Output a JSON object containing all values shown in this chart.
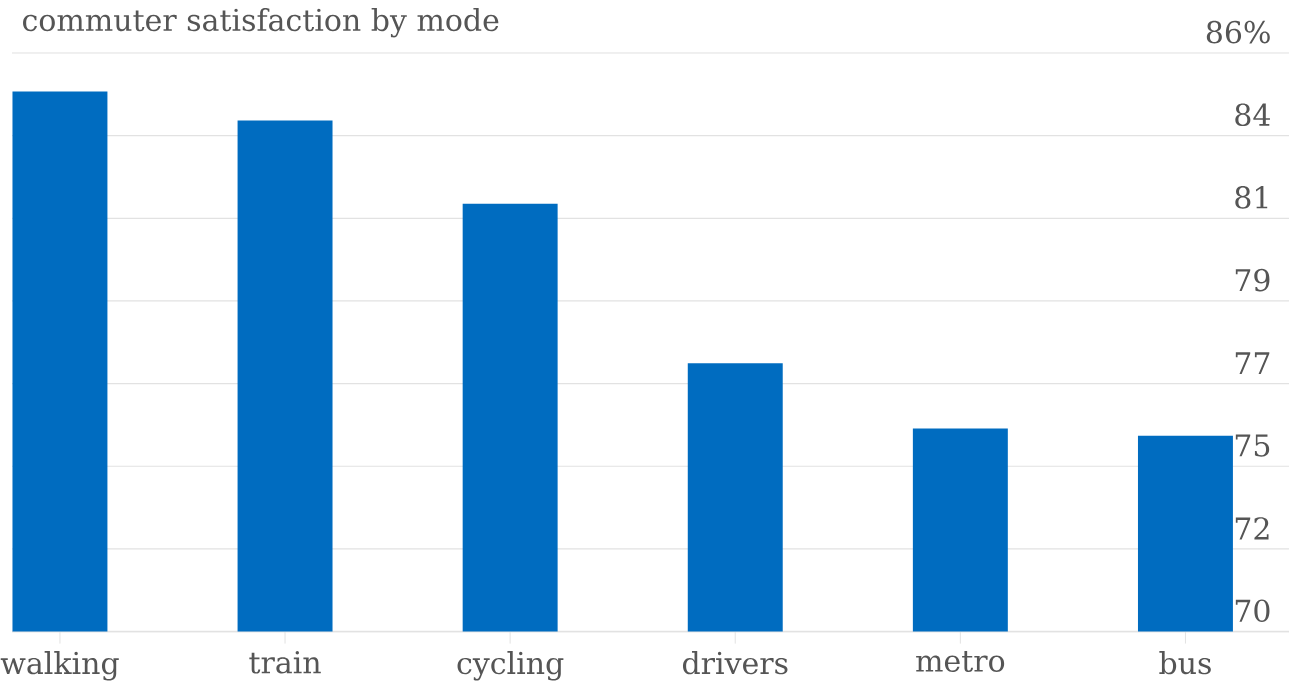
{
  "chart_data": {
    "type": "bar",
    "title": "commuter satisfaction by mode",
    "categories": [
      "walking",
      "train",
      "cycling",
      "drivers",
      "metro",
      "bus"
    ],
    "values": [
      84.9,
      84.1,
      81.8,
      77.4,
      75.6,
      75.4
    ],
    "color": "#006cc0",
    "ylim": [
      70,
      85.96
    ],
    "yticks": [
      70,
      {
        "value": 72.28,
        "label": "72"
      },
      {
        "value": 74.56,
        "label": "75"
      },
      {
        "value": 76.84,
        "label": "77"
      },
      {
        "value": 79.12,
        "label": "79"
      },
      {
        "value": 81.4,
        "label": "81"
      },
      {
        "value": 83.68,
        "label": "84"
      },
      {
        "value": 85.96,
        "label": "86%"
      }
    ],
    "grid": "y"
  }
}
